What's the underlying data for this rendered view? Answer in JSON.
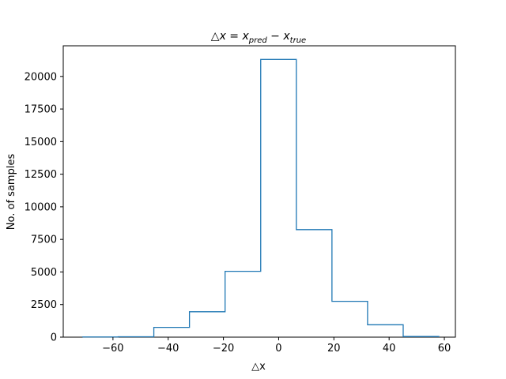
{
  "chart_data": {
    "type": "histogram",
    "title": {
      "prefix": "△x = x",
      "pred_sub": "pred",
      "minus": " − x",
      "true_sub": "true"
    },
    "xlabel": "△x",
    "ylabel": "No. of samples",
    "xlim": [
      -78,
      64
    ],
    "ylim": [
      0,
      22350
    ],
    "xticks": [
      -60,
      -40,
      -20,
      0,
      20,
      40,
      60
    ],
    "xtick_labels": [
      "−60",
      "−40",
      "−20",
      "0",
      "20",
      "40",
      "60"
    ],
    "yticks": [
      0,
      2500,
      5000,
      7500,
      10000,
      12500,
      15000,
      17500,
      20000
    ],
    "ytick_labels": [
      "0",
      "2500",
      "5000",
      "7500",
      "10000",
      "12500",
      "15000",
      "17500",
      "20000"
    ],
    "bin_edges": [
      -71,
      -58.1,
      -45.2,
      -32.3,
      -19.4,
      -6.5,
      6.4,
      19.3,
      32.2,
      45.1,
      58
    ],
    "counts": [
      15,
      30,
      750,
      1950,
      5050,
      21300,
      8250,
      2750,
      950,
      50
    ],
    "line_color": "#1f77b4",
    "grid": false,
    "legend": "none"
  }
}
